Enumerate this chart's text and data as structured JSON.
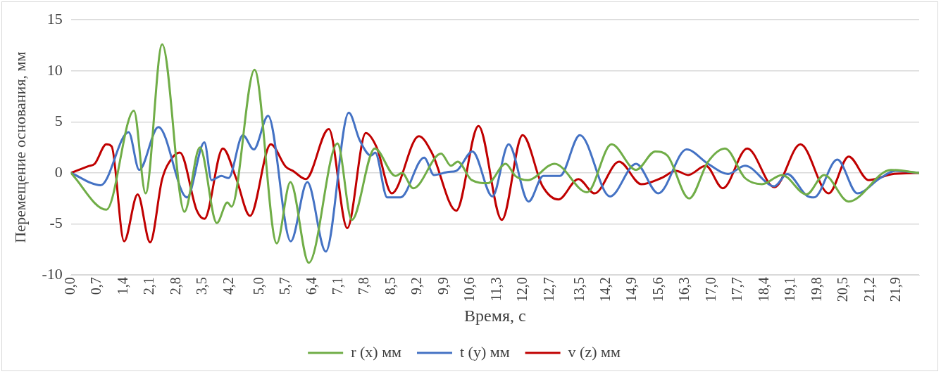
{
  "chart_data": {
    "type": "line",
    "xlabel": "Время, с",
    "ylabel": "Перемещение основания, мм",
    "xlim": [
      0,
      22.5
    ],
    "xticks": [
      {
        "value": 0,
        "label": "0,0"
      },
      {
        "value": 0.7,
        "label": "0,7"
      },
      {
        "value": 1.4,
        "label": "1,4"
      },
      {
        "value": 2.1,
        "label": "2,1"
      },
      {
        "value": 2.8,
        "label": "2,8"
      },
      {
        "value": 3.5,
        "label": "3,5"
      },
      {
        "value": 4.2,
        "label": "4,2"
      },
      {
        "value": 5.0,
        "label": "5,0"
      },
      {
        "value": 5.7,
        "label": "5,7"
      },
      {
        "value": 6.4,
        "label": "6,4"
      },
      {
        "value": 7.1,
        "label": "7,1"
      },
      {
        "value": 7.8,
        "label": "7,8"
      },
      {
        "value": 8.5,
        "label": "8,5"
      },
      {
        "value": 9.2,
        "label": "9,2"
      },
      {
        "value": 9.9,
        "label": "9,9"
      },
      {
        "value": 10.6,
        "label": "10,6"
      },
      {
        "value": 11.3,
        "label": "11,3"
      },
      {
        "value": 12.0,
        "label": "12,0"
      },
      {
        "value": 12.7,
        "label": "12,7"
      },
      {
        "value": 13.5,
        "label": "13,5"
      },
      {
        "value": 14.2,
        "label": "14,2"
      },
      {
        "value": 14.9,
        "label": "14,9"
      },
      {
        "value": 15.6,
        "label": "15,6"
      },
      {
        "value": 16.3,
        "label": "16,3"
      },
      {
        "value": 17.0,
        "label": "17,0"
      },
      {
        "value": 17.7,
        "label": "17,7"
      },
      {
        "value": 18.4,
        "label": "18,4"
      },
      {
        "value": 19.1,
        "label": "19,1"
      },
      {
        "value": 19.8,
        "label": "19,8"
      },
      {
        "value": 20.5,
        "label": "20,5"
      },
      {
        "value": 21.2,
        "label": "21,2"
      },
      {
        "value": 21.9,
        "label": "21,9"
      }
    ],
    "ylim": [
      -10,
      15
    ],
    "yticks": [
      -10,
      -5,
      0,
      5,
      10,
      15
    ],
    "grid": "y",
    "legend": "bottom",
    "marker": "none",
    "line_style": "solid",
    "series": [
      {
        "name": "r (x) мм",
        "color": "#70ad47",
        "x": [
          0,
          0.94,
          1.67,
          1.98,
          2.42,
          3.01,
          3.42,
          3.87,
          4.15,
          4.26,
          4.87,
          5.46,
          5.82,
          6.31,
          7.07,
          7.45,
          8.06,
          8.61,
          8.78,
          9.08,
          9.82,
          10.08,
          10.26,
          10.63,
          11.06,
          11.53,
          11.79,
          12.12,
          12.83,
          13.69,
          14.34,
          14.99,
          15.5,
          15.82,
          16.4,
          16.9,
          17.35,
          17.88,
          18.33,
          18.86,
          19.51,
          19.98,
          20.63,
          21.75,
          22.5
        ],
        "values": [
          0,
          -3.6,
          6.1,
          -2.0,
          12.6,
          -3.8,
          2.5,
          -4.9,
          -2.9,
          -3.3,
          10.1,
          -6.9,
          -0.9,
          -8.8,
          2.9,
          -4.6,
          2.4,
          -0.3,
          0.0,
          -1.5,
          1.9,
          0.7,
          1.1,
          -0.7,
          -1.0,
          0.9,
          -0.3,
          -0.7,
          0.9,
          -1.9,
          2.8,
          0.3,
          2.1,
          1.7,
          -2.5,
          1.1,
          2.4,
          -0.5,
          -1.1,
          -0.2,
          -2.1,
          -0.2,
          -2.8,
          0.3,
          0
        ]
      },
      {
        "name": "t (y) мм",
        "color": "#4472c4",
        "x": [
          0,
          0.79,
          1.53,
          1.81,
          2.32,
          3.08,
          3.54,
          3.73,
          3.99,
          4.18,
          4.56,
          4.85,
          5.23,
          5.83,
          6.27,
          6.76,
          7.37,
          7.66,
          7.96,
          8.07,
          8.39,
          8.74,
          9.37,
          9.63,
          10.02,
          10.22,
          10.65,
          11.18,
          11.61,
          12.14,
          12.53,
          12.97,
          13.5,
          14.3,
          14.99,
          15.58,
          16.33,
          16.9,
          17.43,
          17.88,
          18.66,
          19.0,
          19.51,
          19.71,
          20.33,
          20.86,
          21.47,
          21.87,
          22.5
        ],
        "values": [
          0,
          -1.2,
          4.0,
          0.3,
          4.5,
          -2.4,
          3.0,
          -0.7,
          -0.3,
          -0.5,
          3.7,
          2.3,
          5.6,
          -6.7,
          -0.9,
          -7.7,
          5.9,
          3.2,
          1.7,
          2.0,
          -2.4,
          -2.4,
          1.5,
          -0.2,
          0.1,
          0.2,
          2.1,
          -2.3,
          2.8,
          -2.8,
          -0.3,
          -0.3,
          3.7,
          -2.3,
          0.9,
          -2.0,
          2.3,
          0.9,
          -0.1,
          0.7,
          -1.3,
          -0.1,
          -2.2,
          -2.4,
          1.3,
          -2.0,
          -0.5,
          0.2,
          0
        ]
      },
      {
        "name": "v (z) мм",
        "color": "#c00000",
        "x": [
          0,
          0.45,
          0.63,
          0.94,
          1.08,
          1.41,
          1.77,
          2.1,
          2.42,
          2.69,
          2.89,
          3.34,
          3.54,
          4.03,
          4.38,
          4.75,
          5.3,
          5.7,
          5.89,
          6.23,
          6.84,
          7.33,
          7.82,
          8.11,
          8.51,
          9.23,
          9.57,
          10.22,
          10.81,
          11.43,
          11.98,
          12.51,
          12.93,
          13.46,
          13.89,
          14.54,
          15.13,
          15.66,
          16.05,
          16.37,
          16.84,
          17.29,
          17.94,
          18.66,
          19.35,
          20.1,
          20.63,
          21.16,
          21.81,
          22.5
        ],
        "values": [
          0,
          0.65,
          0.9,
          2.8,
          2.6,
          -6.7,
          -2.1,
          -6.8,
          -0.6,
          1.5,
          2.0,
          -3.7,
          -4.5,
          2.4,
          -0.5,
          -4.2,
          2.8,
          0.6,
          0.2,
          -0.6,
          4.3,
          -5.4,
          3.9,
          2.5,
          -2.0,
          3.6,
          2.0,
          -3.7,
          4.6,
          -4.6,
          3.7,
          -1.3,
          -2.6,
          -0.6,
          -2.0,
          1.1,
          -1.1,
          -0.5,
          0.2,
          -0.2,
          0.7,
          -1.5,
          2.4,
          -1.4,
          2.8,
          -2.0,
          1.6,
          -0.7,
          -0.1,
          0
        ]
      }
    ]
  }
}
